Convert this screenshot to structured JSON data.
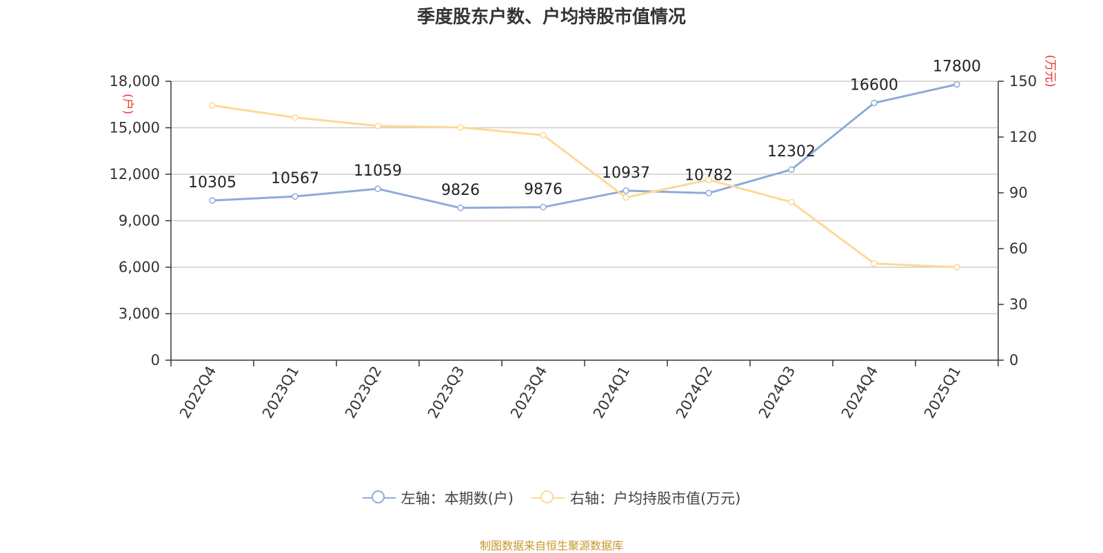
{
  "title": "季度股东户数、户均持股市值情况",
  "source": "制图数据来自恒生聚源数据库",
  "colors": {
    "left_series": "#8eaad9",
    "right_series": "#fcd996",
    "axis_unit": "#e8332c"
  },
  "legend": [
    {
      "label": "左轴：本期数(户)",
      "color": "#8eaad9",
      "icon": "circle-line-icon"
    },
    {
      "label": "右轴：户均持股市值(万元)",
      "color": "#fcd996",
      "icon": "circle-line-icon"
    }
  ],
  "chart_data": {
    "type": "line",
    "title": "季度股东户数、户均持股市值情况",
    "categories": [
      "2022Q4",
      "2023Q1",
      "2023Q2",
      "2023Q3",
      "2023Q4",
      "2024Q1",
      "2024Q2",
      "2024Q3",
      "2024Q4",
      "2025Q1"
    ],
    "y_left": {
      "unit": "(户)",
      "ylim": [
        0,
        18000
      ],
      "ticks": [
        "0",
        "3,000",
        "6,000",
        "9,000",
        "12,000",
        "15,000",
        "18,000"
      ]
    },
    "y_right": {
      "unit": "(万元)",
      "ylim": [
        0,
        150
      ],
      "ticks": [
        "0",
        "30",
        "60",
        "90",
        "120",
        "150"
      ]
    },
    "grid": true,
    "legend_position": "bottom-center",
    "series": [
      {
        "name": "左轴：本期数(户)",
        "axis": "left",
        "color": "#8eaad9",
        "values": [
          10305,
          10567,
          11059,
          9826,
          9876,
          10937,
          10782,
          12302,
          16600,
          17800
        ],
        "data_labels": [
          "10305",
          "10567",
          "11059",
          "9826",
          "9876",
          "10937",
          "10782",
          "12302",
          "16600",
          "17800"
        ]
      },
      {
        "name": "右轴：户均持股市值(万元)",
        "axis": "right",
        "color": "#fcd996",
        "values": [
          137,
          130.5,
          126,
          125.2,
          121,
          87.5,
          97,
          85,
          52,
          50
        ]
      }
    ]
  }
}
